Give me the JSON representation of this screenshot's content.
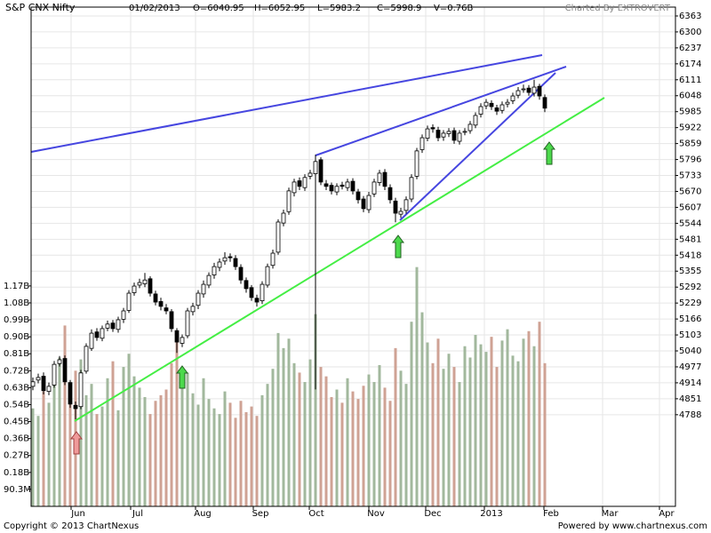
{
  "chart_data": {
    "type": "candlestick",
    "title": "S&P CNX Nifty",
    "date": "01/02/2013",
    "quote": [
      "O=6040.95",
      "H=6052.95",
      "L=5983.2",
      "C=5998.9",
      "V=0.76B"
    ],
    "credit": "Charted By EXTROVERT",
    "footer_left": "Copyright © 2013 ChartNexus",
    "footer_right": "Powered by www.chartnexus.com",
    "months": [
      "Jun",
      "Jul",
      "Aug",
      "Sep",
      "Oct",
      "Nov",
      "Dec",
      "2013",
      "Feb",
      "Mar",
      "Apr"
    ],
    "ylim": [
      4426,
      6398
    ],
    "yticks": [
      6363,
      6300,
      6237,
      6174,
      6111,
      6048,
      5985,
      5922,
      5859,
      5796,
      5733,
      5670,
      5607,
      5544,
      5481,
      5418,
      5355,
      5292,
      5229,
      5166,
      5103,
      5040,
      4977,
      4914,
      4851,
      4788
    ],
    "y2lim": [
      0,
      2650000000
    ],
    "y2ticks": [
      {
        "value": 1170000000,
        "label": "1.17B"
      },
      {
        "value": 1080000000,
        "label": "1.08B"
      },
      {
        "value": 990000000,
        "label": "0.99B"
      },
      {
        "value": 900000000,
        "label": "0.90B"
      },
      {
        "value": 810000000,
        "label": "0.81B"
      },
      {
        "value": 720000000,
        "label": "0.72B"
      },
      {
        "value": 630000000,
        "label": "0.63B"
      },
      {
        "value": 540000000,
        "label": "0.54B"
      },
      {
        "value": 450000000,
        "label": "0.45B"
      },
      {
        "value": 360000000,
        "label": "0.36B"
      },
      {
        "value": 270000000,
        "label": "0.27B"
      },
      {
        "value": 180000000,
        "label": "0.18B"
      },
      {
        "value": 90300000,
        "label": "90.3M"
      }
    ],
    "grid": true,
    "up_color": "#ffffff",
    "down_color": "#000000",
    "volume_up_color": "#a2b89d",
    "volume_down_color": "#cfa294",
    "candles": {
      "open": [
        4900,
        4925,
        4940,
        4880,
        4905,
        4990,
        5010,
        4915,
        4825,
        4820,
        4960,
        5050,
        5115,
        5090,
        5130,
        5150,
        5125,
        5165,
        5200,
        5270,
        5300,
        5305,
        5325,
        5265,
        5235,
        5210,
        5195,
        5120,
        5070,
        5100,
        5195,
        5220,
        5265,
        5300,
        5340,
        5370,
        5395,
        5412,
        5405,
        5370,
        5318,
        5290,
        5248,
        5238,
        5300,
        5378,
        5430,
        5545,
        5590,
        5665,
        5712,
        5685,
        5730,
        5740,
        5795,
        5700,
        5694,
        5668,
        5695,
        5685,
        5710,
        5668,
        5640,
        5598,
        5660,
        5705,
        5745,
        5685,
        5632,
        5580,
        5595,
        5640,
        5730,
        5835,
        5880,
        5922,
        5912,
        5885,
        5898,
        5910,
        5868,
        5905,
        5910,
        5932,
        5975,
        6008,
        6018,
        6000,
        5990,
        6015,
        6028,
        6050,
        6072,
        6078,
        6058,
        6085,
        6040.95
      ],
      "high": [
        4935,
        4950,
        4955,
        4915,
        5000,
        5020,
        5022,
        4925,
        4840,
        4965,
        5070,
        5125,
        5130,
        5140,
        5160,
        5162,
        5175,
        5210,
        5280,
        5310,
        5325,
        5348,
        5335,
        5278,
        5250,
        5225,
        5205,
        5130,
        5105,
        5210,
        5230,
        5280,
        5318,
        5350,
        5388,
        5405,
        5430,
        5425,
        5418,
        5382,
        5330,
        5300,
        5262,
        5315,
        5385,
        5440,
        5560,
        5598,
        5685,
        5720,
        5725,
        5738,
        5755,
        5815,
        5805,
        5715,
        5705,
        5702,
        5708,
        5720,
        5722,
        5680,
        5652,
        5668,
        5720,
        5755,
        5758,
        5698,
        5645,
        5605,
        5650,
        5738,
        5842,
        5895,
        5930,
        5935,
        5925,
        5912,
        5920,
        5922,
        5912,
        5920,
        5948,
        5982,
        6018,
        6035,
        6030,
        6012,
        6025,
        6035,
        6060,
        6082,
        6092,
        6090,
        6111,
        6095,
        6052.95
      ],
      "low": [
        4885,
        4912,
        4868,
        4865,
        4895,
        4978,
        4905,
        4815,
        4770,
        4810,
        4950,
        5040,
        5080,
        5078,
        5118,
        5115,
        5112,
        5150,
        5190,
        5258,
        5288,
        5292,
        5255,
        5220,
        5200,
        5185,
        5115,
        5032,
        5055,
        5090,
        5180,
        5205,
        5250,
        5288,
        5325,
        5355,
        5380,
        5392,
        5360,
        5305,
        5270,
        5238,
        5215,
        5225,
        5290,
        5365,
        5420,
        5532,
        5578,
        5650,
        5675,
        5672,
        5718,
        4888,
        5695,
        5675,
        5658,
        5655,
        5678,
        5672,
        5658,
        5622,
        5588,
        5585,
        5648,
        5692,
        5675,
        5622,
        5548,
        5565,
        5582,
        5628,
        5718,
        5822,
        5868,
        5902,
        5868,
        5870,
        5885,
        5858,
        5855,
        5892,
        5898,
        5920,
        5962,
        5995,
        5992,
        5972,
        5978,
        6002,
        6015,
        6038,
        6060,
        6048,
        6045,
        6032,
        5983.2
      ],
      "close": [
        4918,
        4935,
        4883,
        4900,
        4987,
        5005,
        4918,
        4830,
        4812,
        4953,
        5058,
        5110,
        5093,
        5128,
        5146,
        5128,
        5163,
        5198,
        5268,
        5296,
        5310,
        5320,
        5268,
        5233,
        5216,
        5198,
        5128,
        5075,
        5093,
        5198,
        5216,
        5268,
        5303,
        5338,
        5373,
        5391,
        5408,
        5408,
        5373,
        5320,
        5286,
        5251,
        5233,
        5303,
        5373,
        5426,
        5549,
        5584,
        5672,
        5707,
        5690,
        5725,
        5742,
        5788,
        5707,
        5690,
        5672,
        5690,
        5690,
        5707,
        5672,
        5637,
        5602,
        5654,
        5707,
        5742,
        5690,
        5637,
        5584,
        5591,
        5637,
        5725,
        5830,
        5882,
        5917,
        5917,
        5882,
        5900,
        5907,
        5872,
        5900,
        5907,
        5935,
        5970,
        6005,
        6022,
        6005,
        5987,
        6012,
        6022,
        6047,
        6068,
        6075,
        6061,
        6082,
        6047,
        5998.9
      ],
      "volume": [
        520000000.0,
        480000000.0,
        610000000.0,
        550000000.0,
        680000000.0,
        790000000.0,
        960000000.0,
        640000000.0,
        720000000.0,
        780000000.0,
        590000000.0,
        650000000.0,
        490000000.0,
        530000000.0,
        680000000.0,
        770000000.0,
        510000000.0,
        740000000.0,
        810000000.0,
        690000000.0,
        630000000.0,
        580000000.0,
        490000000.0,
        560000000.0,
        590000000.0,
        620000000.0,
        760000000.0,
        880000000.0,
        640000000.0,
        710000000.0,
        600000000.0,
        540000000.0,
        680000000.0,
        570000000.0,
        520000000.0,
        490000000.0,
        610000000.0,
        550000000.0,
        470000000.0,
        560000000.0,
        500000000.0,
        530000000.0,
        480000000.0,
        590000000.0,
        650000000.0,
        730000000.0,
        920000000.0,
        840000000.0,
        890000000.0,
        760000000.0,
        710000000.0,
        660000000.0,
        780000000.0,
        1020000000.0,
        740000000.0,
        690000000.0,
        580000000.0,
        620000000.0,
        550000000.0,
        680000000.0,
        610000000.0,
        570000000.0,
        640000000.0,
        700000000.0,
        660000000.0,
        750000000.0,
        630000000.0,
        560000000.0,
        840000000.0,
        720000000.0,
        650000000.0,
        980000000.0,
        1270000000.0,
        1030000000.0,
        870000000.0,
        760000000.0,
        890000000.0,
        730000000.0,
        810000000.0,
        740000000.0,
        660000000.0,
        850000000.0,
        790000000.0,
        910000000.0,
        860000000.0,
        820000000.0,
        900000000.0,
        740000000.0,
        880000000.0,
        940000000.0,
        800000000.0,
        770000000.0,
        890000000.0,
        930000000.0,
        850000000.0,
        980000000.0,
        760000000.0
      ]
    }
  }
}
